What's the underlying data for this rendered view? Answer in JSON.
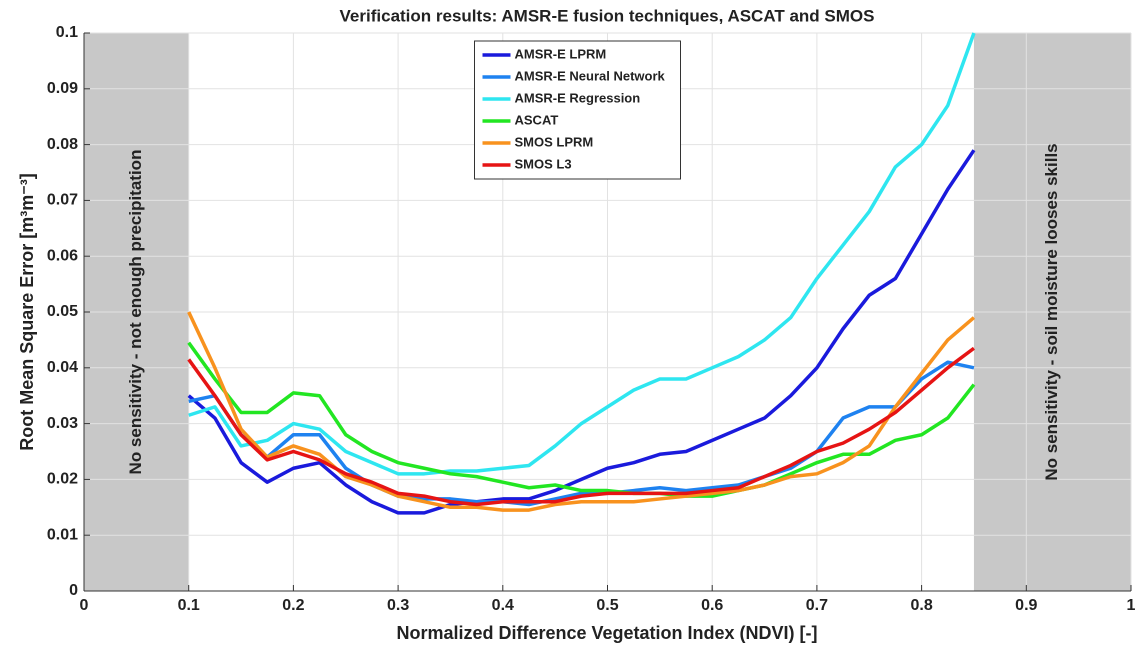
{
  "chart_data": {
    "type": "line",
    "title": "Verification results: AMSR-E fusion techniques, ASCAT and SMOS",
    "xlabel": "Normalized Difference Vegetation Index (NDVI) [-]",
    "ylabel": "Root Mean Square Error [m³m⁻³]",
    "xlim": [
      0,
      1
    ],
    "ylim": [
      0,
      0.1
    ],
    "xticks": [
      0,
      0.1,
      0.2,
      0.3,
      0.4,
      0.5,
      0.6,
      0.7,
      0.8,
      0.9,
      1
    ],
    "yticks": [
      0,
      0.01,
      0.02,
      0.03,
      0.04,
      0.05,
      0.06,
      0.07,
      0.08,
      0.09,
      0.1
    ],
    "grid": true,
    "legend": "upper center",
    "shaded_regions": [
      {
        "x": [
          0,
          0.1
        ],
        "color": "#c8c8c8",
        "text": "No sensitivity - not enough precipitation"
      },
      {
        "x": [
          0.85,
          1
        ],
        "color": "#c8c8c8",
        "text": "No sensitivity - soil moisture looses skills"
      }
    ],
    "x": [
      0.1,
      0.125,
      0.15,
      0.175,
      0.2,
      0.225,
      0.25,
      0.275,
      0.3,
      0.325,
      0.35,
      0.375,
      0.4,
      0.425,
      0.45,
      0.475,
      0.5,
      0.525,
      0.55,
      0.575,
      0.6,
      0.625,
      0.65,
      0.675,
      0.7,
      0.725,
      0.75,
      0.775,
      0.8,
      0.825,
      0.85
    ],
    "series": [
      {
        "name": "AMSR-E LPRM",
        "color": "#1a1adc",
        "values": [
          0.035,
          0.031,
          0.023,
          0.0195,
          0.022,
          0.023,
          0.019,
          0.016,
          0.014,
          0.014,
          0.0155,
          0.016,
          0.0165,
          0.0165,
          0.018,
          0.02,
          0.022,
          0.023,
          0.0245,
          0.025,
          0.027,
          0.029,
          0.031,
          0.035,
          0.04,
          0.047,
          0.053,
          0.056,
          0.064,
          0.072,
          0.079
        ]
      },
      {
        "name": "AMSR-E Neural Network",
        "color": "#1e82f0",
        "values": [
          0.034,
          0.035,
          0.028,
          0.024,
          0.028,
          0.028,
          0.022,
          0.019,
          0.017,
          0.0165,
          0.0165,
          0.016,
          0.016,
          0.0155,
          0.0165,
          0.0175,
          0.0175,
          0.018,
          0.0185,
          0.018,
          0.0185,
          0.019,
          0.0205,
          0.022,
          0.025,
          0.031,
          0.033,
          0.033,
          0.038,
          0.041,
          0.04
        ]
      },
      {
        "name": "AMSR-E Regression",
        "color": "#2ee6f0",
        "values": [
          0.0315,
          0.033,
          0.026,
          0.027,
          0.03,
          0.029,
          0.025,
          0.023,
          0.021,
          0.021,
          0.0215,
          0.0215,
          0.022,
          0.0225,
          0.026,
          0.03,
          0.033,
          0.036,
          0.038,
          0.038,
          0.04,
          0.042,
          0.045,
          0.049,
          0.056,
          0.062,
          0.068,
          0.076,
          0.08,
          0.087,
          0.1
        ]
      },
      {
        "name": "ASCAT",
        "color": "#22e622",
        "values": [
          0.0445,
          0.038,
          0.032,
          0.032,
          0.0355,
          0.035,
          0.028,
          0.025,
          0.023,
          0.022,
          0.021,
          0.0205,
          0.0195,
          0.0185,
          0.019,
          0.018,
          0.018,
          0.0175,
          0.0175,
          0.017,
          0.017,
          0.018,
          0.019,
          0.021,
          0.023,
          0.0245,
          0.0245,
          0.027,
          0.028,
          0.031,
          0.037
        ]
      },
      {
        "name": "SMOS LPRM",
        "color": "#f8921e",
        "values": [
          0.05,
          0.04,
          0.029,
          0.024,
          0.026,
          0.0245,
          0.0205,
          0.019,
          0.017,
          0.016,
          0.015,
          0.015,
          0.0145,
          0.0145,
          0.0155,
          0.016,
          0.016,
          0.016,
          0.0165,
          0.017,
          0.0175,
          0.018,
          0.019,
          0.0205,
          0.021,
          0.023,
          0.026,
          0.033,
          0.039,
          0.045,
          0.049
        ]
      },
      {
        "name": "SMOS L3",
        "color": "#e61414",
        "values": [
          0.0415,
          0.035,
          0.028,
          0.0235,
          0.025,
          0.0235,
          0.021,
          0.0195,
          0.0175,
          0.017,
          0.016,
          0.0155,
          0.016,
          0.016,
          0.016,
          0.017,
          0.0175,
          0.0175,
          0.0175,
          0.0175,
          0.018,
          0.0185,
          0.0205,
          0.0225,
          0.025,
          0.0265,
          0.029,
          0.032,
          0.036,
          0.04,
          0.0435
        ]
      }
    ]
  }
}
